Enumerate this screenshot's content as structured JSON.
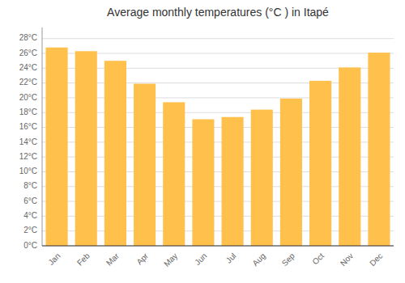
{
  "chart_data": {
    "type": "bar",
    "title": "Average monthly temperatures (°C ) in Itapé",
    "categories": [
      "Jan",
      "Feb",
      "Mar",
      "Apr",
      "May",
      "Jun",
      "Jul",
      "Aug",
      "Sep",
      "Oct",
      "Nov",
      "Dec"
    ],
    "values": [
      26.8,
      26.3,
      25.0,
      21.9,
      19.4,
      17.1,
      17.4,
      18.4,
      19.9,
      22.3,
      24.1,
      26.1
    ],
    "color": "#FFC04C",
    "ylim": [
      0,
      29.5
    ],
    "yticks": [
      {
        "value": 0,
        "label": "0°C"
      },
      {
        "value": 2,
        "label": "2°C"
      },
      {
        "value": 4,
        "label": "4°C"
      },
      {
        "value": 6,
        "label": "6°C"
      },
      {
        "value": 8,
        "label": "8°C"
      },
      {
        "value": 10,
        "label": "10°C"
      },
      {
        "value": 12,
        "label": "12°C"
      },
      {
        "value": 14,
        "label": "14°C"
      },
      {
        "value": 16,
        "label": "16°C"
      },
      {
        "value": 18,
        "label": "18°C"
      },
      {
        "value": 20,
        "label": "20°C"
      },
      {
        "value": 22,
        "label": "22°C"
      },
      {
        "value": 24,
        "label": "24°C"
      },
      {
        "value": 26,
        "label": "26°C"
      },
      {
        "value": 28,
        "label": "28°C"
      }
    ],
    "grid": true
  }
}
